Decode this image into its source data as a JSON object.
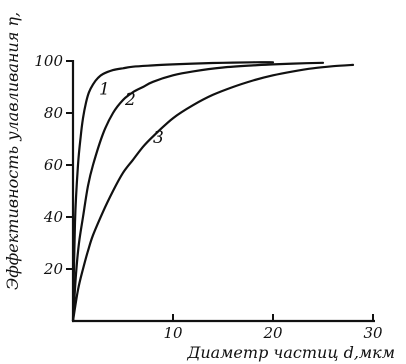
{
  "chart_data": {
    "type": "line",
    "xlabel": "Диаметр частиц d,мкм",
    "ylabel": "Эффективность улавливания η,",
    "xlim": [
      0,
      30
    ],
    "ylim": [
      0,
      100
    ],
    "xticks": [
      "10",
      "20",
      "30"
    ],
    "yticks": [
      "20",
      "40",
      "60",
      "80",
      "100"
    ],
    "grid": false,
    "series": [
      {
        "name": "1",
        "x": [
          0,
          0.2,
          0.5,
          0.8,
          1,
          1.3,
          1.6,
          2,
          2.5,
          3,
          4,
          5,
          6,
          8,
          10,
          12,
          15,
          18,
          20
        ],
        "y": [
          0,
          38,
          60,
          72,
          78,
          84,
          88,
          91,
          93.5,
          95,
          96.5,
          97.2,
          97.8,
          98.3,
          98.7,
          99,
          99.3,
          99.5,
          99.5
        ]
      },
      {
        "name": "2",
        "x": [
          0,
          0.3,
          0.6,
          1,
          1.5,
          2,
          3,
          4,
          5,
          6,
          7,
          8,
          10,
          12,
          15,
          18,
          20,
          22,
          25
        ],
        "y": [
          0,
          18,
          30,
          40,
          52,
          60,
          72,
          80,
          85,
          88,
          90,
          92,
          94.5,
          96,
          97.5,
          98.3,
          98.7,
          99,
          99.3
        ]
      },
      {
        "name": "3",
        "x": [
          0,
          0.5,
          1,
          1.5,
          2,
          3,
          4,
          5,
          6,
          7,
          8,
          10,
          12,
          14,
          16,
          18,
          20,
          22,
          24,
          26,
          28
        ],
        "y": [
          0,
          12,
          20,
          27,
          33,
          42,
          50,
          57,
          62,
          67,
          71,
          78,
          83,
          87,
          90,
          92.5,
          94.5,
          96,
          97.2,
          98,
          98.5
        ]
      }
    ]
  }
}
